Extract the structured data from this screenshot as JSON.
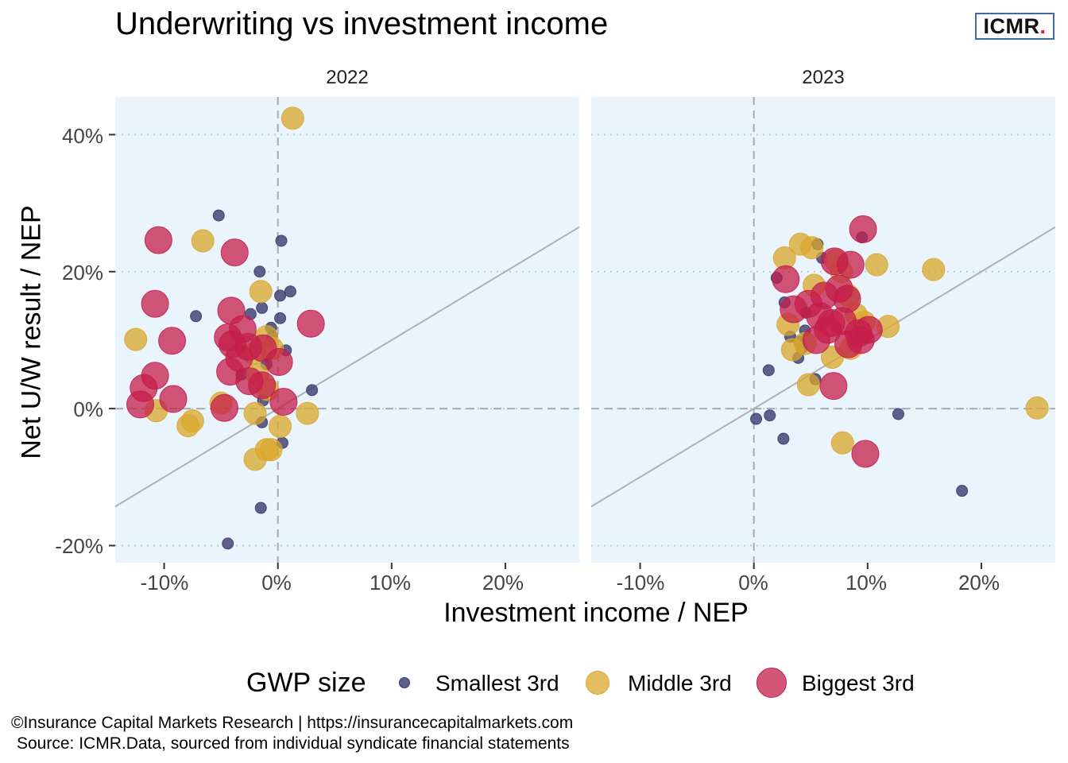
{
  "title": "Underwriting vs investment income",
  "logo": {
    "text": "ICMR",
    "dot": "."
  },
  "legend": {
    "title": "GWP size",
    "items": [
      {
        "label": "Smallest 3rd",
        "color": "#3b3a6e"
      },
      {
        "label": "Middle 3rd",
        "color": "#d9a72b"
      },
      {
        "label": "Biggest 3rd",
        "color": "#c41e4a"
      }
    ]
  },
  "footer": {
    "line1": "©Insurance Capital Markets Research | https://insurancecapitalmarkets.com",
    "line2": "Source: ICMR.Data, sourced from individual syndicate financial statements"
  },
  "chart_data": {
    "type": "scatter",
    "title": "Underwriting vs investment income",
    "xlabel": "Investment income / NEP",
    "ylabel": "Net U/W result / NEP",
    "x_ticks": [
      "-10%",
      "0%",
      "10%",
      "20%"
    ],
    "y_ticks": [
      "40%",
      "20%",
      "0%",
      "-20%"
    ],
    "xlim": [
      -14.3,
      26.5
    ],
    "ylim": [
      -22.5,
      45.5
    ],
    "grid": "horizontal dotted",
    "reference_line": {
      "slope": 1,
      "intercept": 0
    },
    "legend_position": "bottom",
    "panels": [
      {
        "facet": "2022",
        "series": [
          {
            "name": "Smallest 3rd",
            "points": [
              [
                -5.2,
                28.2
              ],
              [
                0.3,
                24.5
              ],
              [
                -1.6,
                20.0
              ],
              [
                -7.2,
                13.5
              ],
              [
                -1.4,
                14.7
              ],
              [
                -2.4,
                13.8
              ],
              [
                1.1,
                17.1
              ],
              [
                0.2,
                16.5
              ],
              [
                0.2,
                13.2
              ],
              [
                -0.6,
                11.8
              ],
              [
                -0.5,
                10.5
              ],
              [
                0.7,
                8.5
              ],
              [
                -1.0,
                6.5
              ],
              [
                -3.2,
                5.0
              ],
              [
                -1.3,
                1.2
              ],
              [
                3.0,
                2.7
              ],
              [
                -1.4,
                -2.0
              ],
              [
                0.4,
                -5.0
              ],
              [
                -1.5,
                -14.5
              ],
              [
                -4.4,
                -19.7
              ]
            ]
          },
          {
            "name": "Middle 3rd",
            "points": [
              [
                1.3,
                42.4
              ],
              [
                -6.6,
                24.5
              ],
              [
                -1.5,
                17.1
              ],
              [
                -12.5,
                10.1
              ],
              [
                -1.0,
                10.5
              ],
              [
                -0.5,
                8.8
              ],
              [
                -2.1,
                8.0
              ],
              [
                -1.8,
                5.0
              ],
              [
                -0.9,
                2.8
              ],
              [
                -5.0,
                0.8
              ],
              [
                -10.7,
                -0.3
              ],
              [
                -7.5,
                -1.8
              ],
              [
                -7.9,
                -2.5
              ],
              [
                -2.0,
                -0.7
              ],
              [
                0.2,
                -2.6
              ],
              [
                2.6,
                -0.7
              ],
              [
                -0.6,
                -6.0
              ],
              [
                -1.0,
                -6.0
              ],
              [
                -2.0,
                -7.4
              ]
            ]
          },
          {
            "name": "Biggest 3rd",
            "points": [
              [
                -10.5,
                24.6
              ],
              [
                -3.8,
                22.8
              ],
              [
                -10.8,
                15.3
              ],
              [
                -4.1,
                14.3
              ],
              [
                -9.3,
                9.9
              ],
              [
                -4.4,
                10.4
              ],
              [
                -3.1,
                11.6
              ],
              [
                -4.0,
                9.4
              ],
              [
                -2.6,
                9.0
              ],
              [
                -1.3,
                8.8
              ],
              [
                -3.4,
                7.4
              ],
              [
                -4.2,
                5.4
              ],
              [
                -10.8,
                4.8
              ],
              [
                -2.5,
                4.0
              ],
              [
                -1.4,
                3.4
              ],
              [
                0.1,
                6.8
              ],
              [
                0.5,
                1.0
              ],
              [
                2.9,
                12.4
              ],
              [
                -11.8,
                3.0
              ],
              [
                -9.2,
                1.4
              ],
              [
                -12.1,
                0.6
              ],
              [
                -4.7,
                0.1
              ]
            ]
          }
        ]
      },
      {
        "facet": "2023",
        "series": [
          {
            "name": "Smallest 3rd",
            "points": [
              [
                9.5,
                25.0
              ],
              [
                5.6,
                24.0
              ],
              [
                6.0,
                22.0
              ],
              [
                2.0,
                19.1
              ],
              [
                2.7,
                15.5
              ],
              [
                4.6,
                14.0
              ],
              [
                3.2,
                10.5
              ],
              [
                4.0,
                9.8
              ],
              [
                4.5,
                11.4
              ],
              [
                4.2,
                8.8
              ],
              [
                3.9,
                7.4
              ],
              [
                1.3,
                5.6
              ],
              [
                5.4,
                4.3
              ],
              [
                0.2,
                -1.5
              ],
              [
                1.4,
                -1.0
              ],
              [
                2.6,
                -4.4
              ],
              [
                12.7,
                -0.8
              ],
              [
                18.3,
                -12.0
              ]
            ]
          },
          {
            "name": "Middle 3rd",
            "points": [
              [
                4.1,
                24.0
              ],
              [
                5.1,
                23.5
              ],
              [
                2.7,
                22.0
              ],
              [
                7.2,
                21.6
              ],
              [
                10.8,
                21.0
              ],
              [
                15.8,
                20.3
              ],
              [
                7.7,
                20.0
              ],
              [
                5.3,
                18.0
              ],
              [
                8.3,
                16.5
              ],
              [
                9.0,
                13.7
              ],
              [
                3.0,
                12.3
              ],
              [
                9.7,
                12.6
              ],
              [
                11.8,
                12.0
              ],
              [
                4.5,
                9.5
              ],
              [
                3.4,
                8.6
              ],
              [
                8.5,
                8.8
              ],
              [
                6.9,
                7.5
              ],
              [
                4.8,
                3.5
              ],
              [
                7.8,
                -5.0
              ],
              [
                24.9,
                0.1
              ]
            ]
          },
          {
            "name": "Biggest 3rd",
            "points": [
              [
                9.6,
                26.2
              ],
              [
                7.1,
                21.5
              ],
              [
                8.5,
                21.0
              ],
              [
                2.8,
                18.9
              ],
              [
                7.5,
                17.5
              ],
              [
                6.2,
                16.5
              ],
              [
                8.2,
                16.0
              ],
              [
                3.5,
                14.5
              ],
              [
                4.8,
                15.3
              ],
              [
                5.8,
                13.5
              ],
              [
                6.8,
                12.5
              ],
              [
                7.8,
                12.8
              ],
              [
                6.5,
                11.5
              ],
              [
                9.2,
                11.0
              ],
              [
                10.1,
                11.5
              ],
              [
                5.5,
                10.0
              ],
              [
                8.3,
                9.4
              ],
              [
                9.4,
                10.0
              ],
              [
                7.0,
                3.3
              ],
              [
                9.8,
                -6.6
              ]
            ]
          }
        ]
      }
    ]
  }
}
